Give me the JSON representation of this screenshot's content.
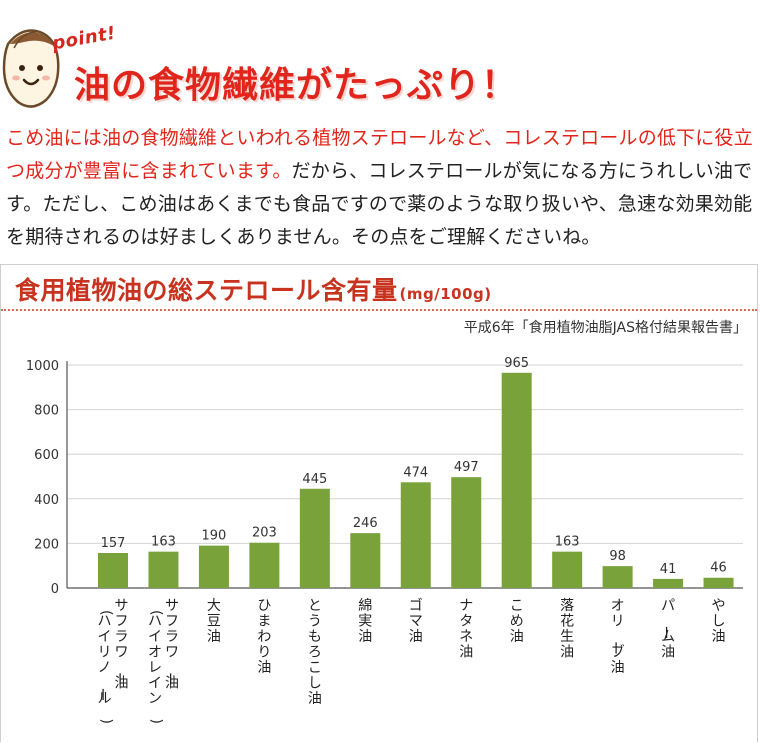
{
  "header": {
    "point_label": "point!",
    "headline": "油の食物繊維がたっぷり！"
  },
  "body": {
    "highlight": "こめ油には油の食物繊維といわれる植物ステロールなど、コレステロールの低下に役立つ成分が豊富に含まれています。",
    "rest": "だから、コレステロールが気になる方にうれしい油です。ただし、こめ油はあくまでも食品ですので薬のような取り扱いや、急速な効果効能を期待されるのは好ましくありません。その点をご理解くださいね。"
  },
  "colors": {
    "accent": "#e0261c",
    "bar": "#7aa23a",
    "grid": "#d4d4d4"
  },
  "chart_data": {
    "type": "bar",
    "title": "食用植物油の総ステロール含有量",
    "unit": "(mg/100g)",
    "source": "平成6年「食用植物油脂JAS格付結果報告書」",
    "categories": [
      "サフラワー油(ハイリノール)",
      "サフラワー油(ハイオレイン)",
      "大豆油",
      "ひまわり油",
      "とうもろこし油",
      "綿実油",
      "ゴマ油",
      "ナタネ油",
      "こめ油",
      "落花生油",
      "オリーブ油",
      "パーム油",
      "やし油"
    ],
    "values": [
      157,
      163,
      190,
      203,
      445,
      246,
      474,
      497,
      965,
      163,
      98,
      41,
      46
    ],
    "value_labels": [
      "157",
      "163",
      "190",
      "203",
      "445",
      "246",
      "474",
      "497",
      "965",
      "163",
      "98",
      "41",
      "46"
    ],
    "yticks": [
      "0",
      "200",
      "400",
      "600",
      "800",
      "1000"
    ],
    "ylim": [
      0,
      1000
    ],
    "grid": true,
    "legend": "none"
  }
}
